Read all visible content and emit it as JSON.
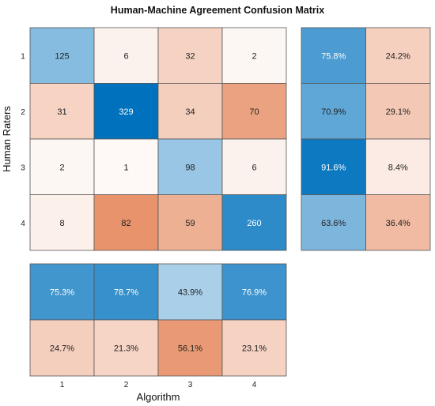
{
  "chart_data": {
    "type": "heatmap",
    "title": "Human-Machine Agreement Confusion Matrix",
    "xlabel": "Algorithm",
    "ylabel": "Human Raters",
    "row_labels": [
      "1",
      "2",
      "3",
      "4"
    ],
    "col_labels": [
      "1",
      "2",
      "3",
      "4"
    ],
    "matrix": [
      [
        125,
        6,
        32,
        2
      ],
      [
        31,
        329,
        34,
        70
      ],
      [
        2,
        1,
        98,
        6
      ],
      [
        8,
        82,
        59,
        260
      ]
    ],
    "row_summary": [
      [
        "75.8%",
        "24.2%"
      ],
      [
        "70.9%",
        "29.1%"
      ],
      [
        "91.6%",
        "8.4%"
      ],
      [
        "63.6%",
        "36.4%"
      ]
    ],
    "row_summary_values": [
      [
        75.8,
        24.2
      ],
      [
        70.9,
        29.1
      ],
      [
        91.6,
        8.4
      ],
      [
        63.6,
        36.4
      ]
    ],
    "column_summary": [
      [
        "75.3%",
        "78.7%",
        "43.9%",
        "76.9%"
      ],
      [
        "24.7%",
        "21.3%",
        "56.1%",
        "23.1%"
      ]
    ],
    "column_summary_values": [
      [
        75.3,
        78.7,
        43.9,
        76.9
      ],
      [
        24.7,
        21.3,
        56.1,
        23.1
      ]
    ],
    "colors": {
      "correct": "#0072bd",
      "incorrect": "#d95319",
      "border": "#555555"
    }
  }
}
